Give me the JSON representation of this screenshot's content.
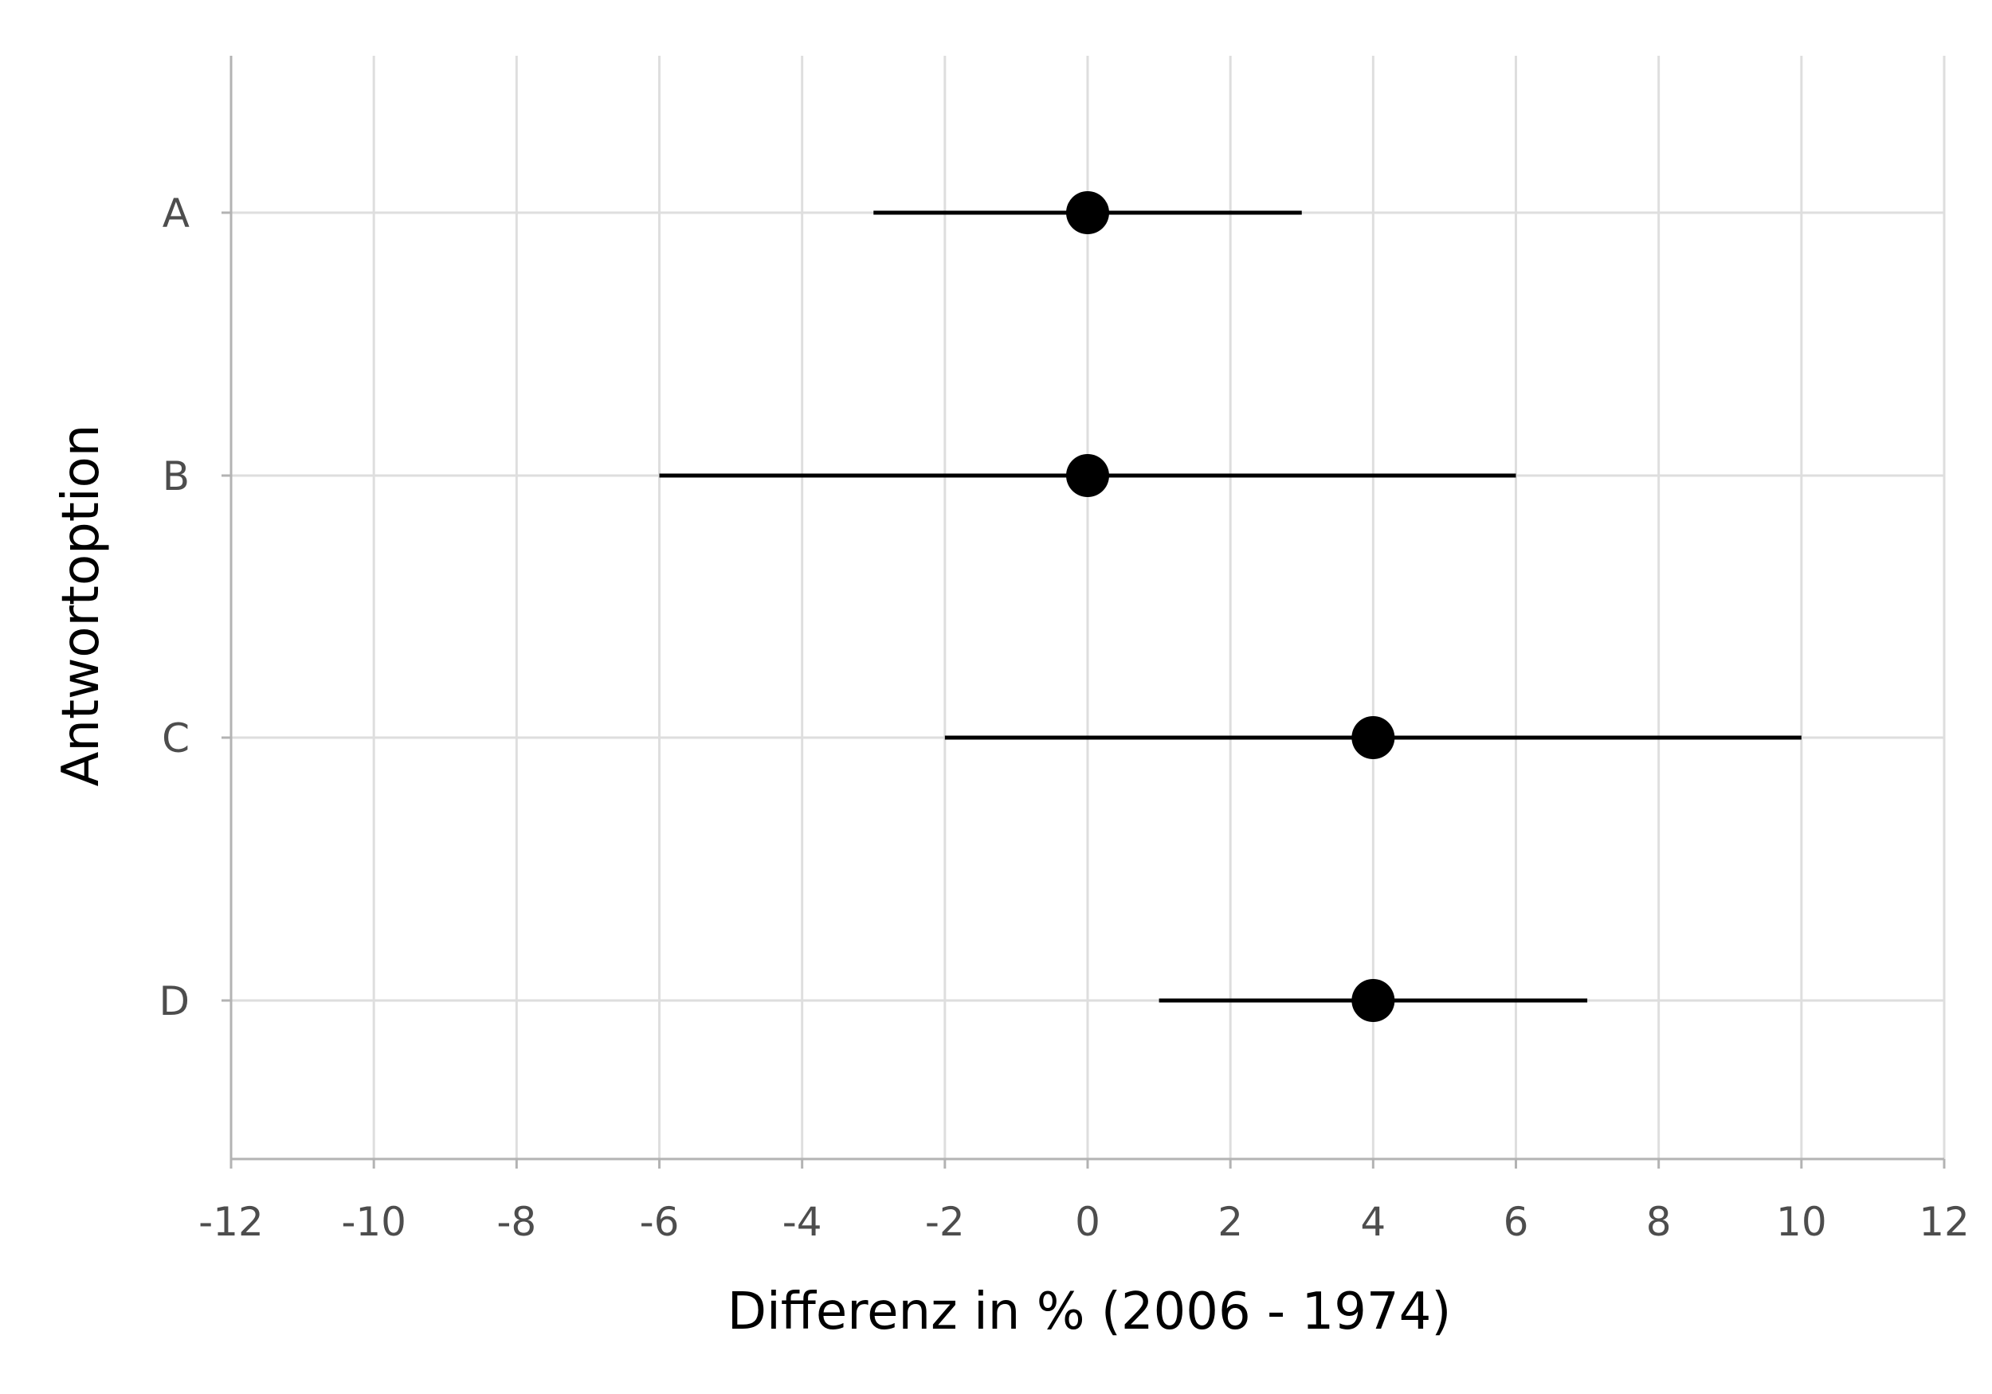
{
  "chart_data": {
    "type": "scatter",
    "title": "",
    "xlabel": "Differenz in % (2006 - 1974)",
    "ylabel": "Antwortoption",
    "xlim": [
      -12,
      12
    ],
    "x_ticks": [
      -12,
      -10,
      -8,
      -6,
      -4,
      -2,
      0,
      2,
      4,
      6,
      8,
      10,
      12
    ],
    "categories": [
      "A",
      "B",
      "C",
      "D"
    ],
    "points": [
      {
        "category": "A",
        "value": 0,
        "low": -3,
        "high": 3
      },
      {
        "category": "B",
        "value": 0,
        "low": -6,
        "high": 6
      },
      {
        "category": "C",
        "value": 4,
        "low": -2,
        "high": 10
      },
      {
        "category": "D",
        "value": 4,
        "low": 1,
        "high": 7
      }
    ],
    "grid": true,
    "legend": "none"
  }
}
